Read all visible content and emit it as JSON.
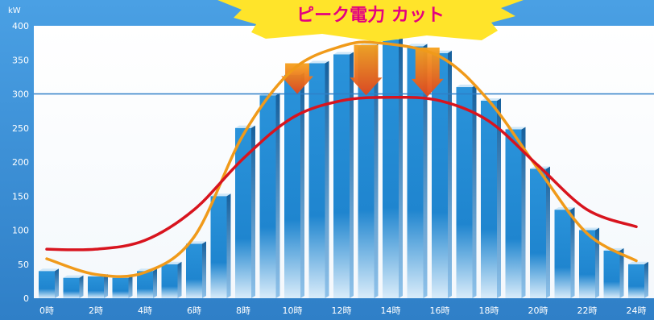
{
  "chart_data": {
    "type": "bar",
    "title": "ピーク電力 カット",
    "unit_label": "kW",
    "ylim": [
      0,
      400
    ],
    "yticks": [
      0,
      50,
      100,
      150,
      200,
      250,
      300,
      350,
      400
    ],
    "reference_line": 300,
    "x_tick_labels": [
      "0時",
      "2時",
      "4時",
      "6時",
      "8時",
      "10時",
      "12時",
      "14時",
      "16時",
      "18時",
      "20時",
      "22時",
      "24時"
    ],
    "categories": [
      0,
      1,
      2,
      3,
      4,
      5,
      6,
      7,
      8,
      9,
      10,
      11,
      12,
      13,
      14,
      15,
      16,
      17,
      18,
      19,
      20,
      21,
      22,
      23,
      24
    ],
    "values": [
      40,
      30,
      32,
      30,
      40,
      50,
      80,
      150,
      250,
      298,
      328,
      345,
      358,
      370,
      380,
      370,
      360,
      310,
      290,
      248,
      190,
      130,
      100,
      70,
      50
    ],
    "lines": [
      {
        "color": "#f09a1a",
        "x": [
          0,
          2,
          4,
          6,
          8,
          10,
          12,
          13.5,
          16,
          18,
          20,
          22,
          24
        ],
        "y": [
          58,
          35,
          38,
          90,
          240,
          335,
          370,
          375,
          355,
          290,
          190,
          95,
          55
        ]
      },
      {
        "color": "#d8141e",
        "x": [
          0,
          2,
          4,
          6,
          8,
          10,
          12,
          14,
          16,
          18,
          20,
          22,
          24
        ],
        "y": [
          72,
          72,
          85,
          130,
          205,
          265,
          290,
          295,
          290,
          260,
          195,
          130,
          105
        ]
      }
    ],
    "grid": false,
    "colors": {
      "background": "#3c8fd6",
      "bar_top": "#cfe7f8",
      "bar_front": "#1f8ad3",
      "banner": "#ffe42a",
      "banner_text": "#e4007f",
      "arrow_top": "#f6a21d",
      "arrow_bottom": "#e2461b"
    }
  }
}
